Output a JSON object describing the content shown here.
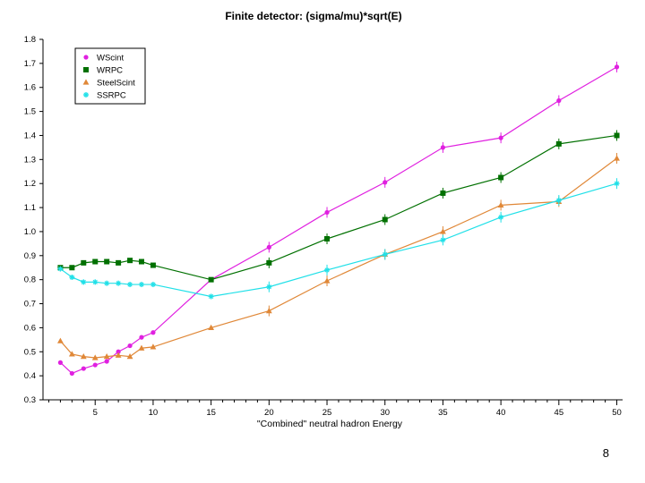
{
  "chart_data": {
    "type": "line",
    "title": "Finite detector: (sigma/mu)*sqrt(E)",
    "xlabel": "\"Combined\" neutral hadron Energy",
    "ylabel": "",
    "xlim": [
      0.5,
      50.5
    ],
    "ylim": [
      0.3,
      1.8
    ],
    "xticks": [
      5,
      10,
      15,
      20,
      25,
      30,
      35,
      40,
      45,
      50
    ],
    "yticks": [
      "0.3",
      "0.4",
      "0.5",
      "0.6",
      "0.7",
      "0.8",
      "0.9",
      "1.0",
      "1.1",
      "1.2",
      "1.3",
      "1.4",
      "1.5",
      "1.6",
      "1.7",
      "1.8"
    ],
    "legend_position": "top-left",
    "grid": false,
    "series": [
      {
        "name": "WScint",
        "color": "#e020e0",
        "marker": "circle",
        "x": [
          2,
          3,
          4,
          5,
          6,
          7,
          8,
          9,
          10,
          15,
          20,
          25,
          30,
          35,
          40,
          45,
          50
        ],
        "y": [
          0.455,
          0.41,
          0.43,
          0.445,
          0.46,
          0.5,
          0.525,
          0.56,
          0.58,
          0.8,
          0.935,
          1.08,
          1.205,
          1.35,
          1.39,
          1.545,
          1.685
        ]
      },
      {
        "name": "WRPC",
        "color": "#007000",
        "marker": "square",
        "x": [
          2,
          3,
          4,
          5,
          6,
          7,
          8,
          9,
          10,
          15,
          20,
          25,
          30,
          35,
          40,
          45,
          50
        ],
        "y": [
          0.85,
          0.85,
          0.87,
          0.875,
          0.875,
          0.87,
          0.88,
          0.875,
          0.86,
          0.8,
          0.87,
          0.97,
          1.05,
          1.16,
          1.225,
          1.365,
          1.4
        ]
      },
      {
        "name": "SteelScint",
        "color": "#e08838",
        "marker": "triangle",
        "x": [
          2,
          3,
          4,
          5,
          6,
          7,
          8,
          9,
          10,
          15,
          20,
          25,
          30,
          35,
          40,
          45,
          50
        ],
        "y": [
          0.545,
          0.49,
          0.48,
          0.475,
          0.48,
          0.485,
          0.48,
          0.515,
          0.52,
          0.6,
          0.67,
          0.795,
          0.905,
          1.0,
          1.11,
          1.125,
          1.305
        ]
      },
      {
        "name": "SSRPC",
        "color": "#20e0e8",
        "marker": "star",
        "x": [
          2,
          3,
          4,
          5,
          6,
          7,
          8,
          9,
          10,
          15,
          20,
          25,
          30,
          35,
          40,
          45,
          50
        ],
        "y": [
          0.845,
          0.81,
          0.79,
          0.79,
          0.785,
          0.785,
          0.78,
          0.78,
          0.78,
          0.73,
          0.77,
          0.84,
          0.905,
          0.965,
          1.06,
          1.13,
          1.2
        ]
      }
    ]
  },
  "page_number": "8"
}
